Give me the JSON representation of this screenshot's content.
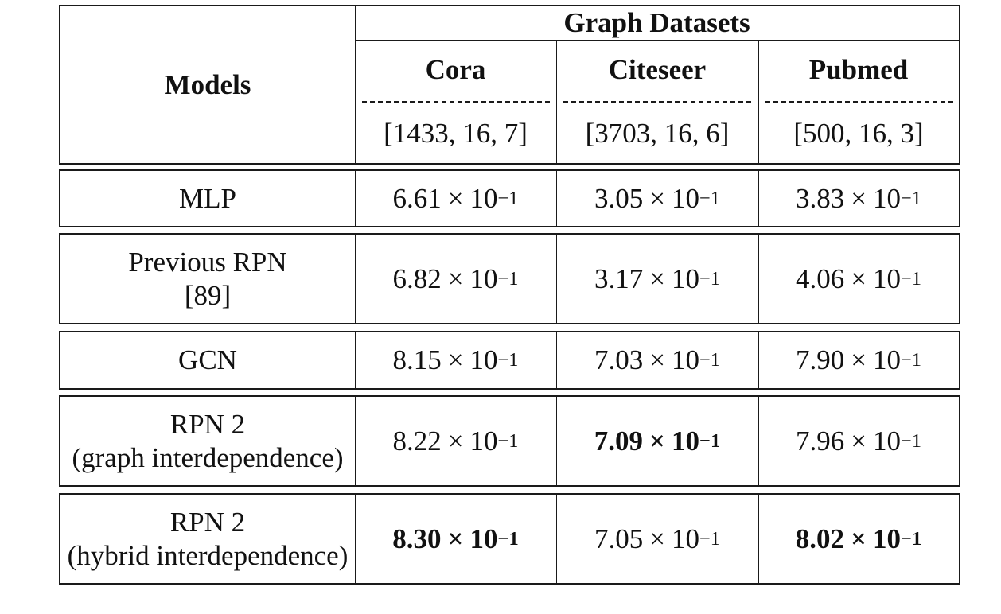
{
  "header": {
    "models": "Models",
    "group": "Graph Datasets",
    "datasets": [
      {
        "name": "Cora",
        "dims": "[1433, 16, 7]"
      },
      {
        "name": "Citeseer",
        "dims": "[3703, 16, 6]"
      },
      {
        "name": "Pubmed",
        "dims": "[500, 16, 3]"
      }
    ]
  },
  "rows": [
    {
      "model_line1": "MLP",
      "model_line2": "",
      "values": [
        {
          "mantissa": "6.61",
          "base": "10",
          "exp": "−1",
          "bold": false
        },
        {
          "mantissa": "3.05",
          "base": "10",
          "exp": "−1",
          "bold": false
        },
        {
          "mantissa": "3.83",
          "base": "10",
          "exp": "−1",
          "bold": false
        }
      ]
    },
    {
      "model_line1": "Previous RPN",
      "model_line2": "[89]",
      "values": [
        {
          "mantissa": "6.82",
          "base": "10",
          "exp": "−1",
          "bold": false
        },
        {
          "mantissa": "3.17",
          "base": "10",
          "exp": "−1",
          "bold": false
        },
        {
          "mantissa": "4.06",
          "base": "10",
          "exp": "−1",
          "bold": false
        }
      ]
    },
    {
      "model_line1": "GCN",
      "model_line2": "",
      "values": [
        {
          "mantissa": "8.15",
          "base": "10",
          "exp": "−1",
          "bold": false
        },
        {
          "mantissa": "7.03",
          "base": "10",
          "exp": "−1",
          "bold": false
        },
        {
          "mantissa": "7.90",
          "base": "10",
          "exp": "−1",
          "bold": false
        }
      ]
    },
    {
      "model_line1": "RPN 2",
      "model_line2": "(graph interdependence)",
      "values": [
        {
          "mantissa": "8.22",
          "base": "10",
          "exp": "−1",
          "bold": false
        },
        {
          "mantissa": "7.09",
          "base": "10",
          "exp": "−1",
          "bold": true
        },
        {
          "mantissa": "7.96",
          "base": "10",
          "exp": "−1",
          "bold": false
        }
      ]
    },
    {
      "model_line1": "RPN 2",
      "model_line2": "(hybrid interdependence)",
      "values": [
        {
          "mantissa": "8.30",
          "base": "10",
          "exp": "−1",
          "bold": true
        },
        {
          "mantissa": "7.05",
          "base": "10",
          "exp": "−1",
          "bold": false
        },
        {
          "mantissa": "8.02",
          "base": "10",
          "exp": "−1",
          "bold": true
        }
      ]
    }
  ]
}
